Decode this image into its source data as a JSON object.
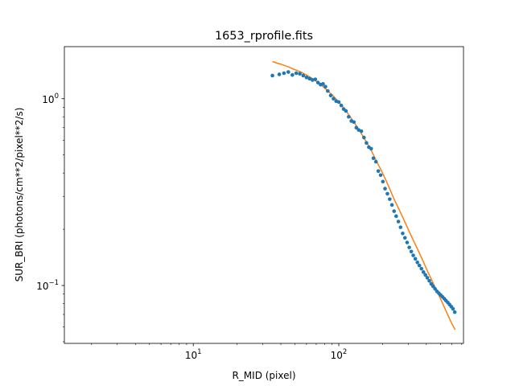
{
  "chart_data": {
    "type": "scatter",
    "title": "1653_rprofile.fits",
    "xlabel": "R_MID (pixel)",
    "ylabel": "SUR_BRI (photons/cm**2/pixel**2/s)",
    "xscale": "log",
    "yscale": "log",
    "xlim": [
      1.3,
      720
    ],
    "ylim": [
      0.049,
      1.9
    ],
    "x_major_ticks": [
      {
        "value": 10,
        "label": "10¹",
        "base": "10",
        "exp": "1"
      },
      {
        "value": 100,
        "label": "10²",
        "base": "10",
        "exp": "2"
      }
    ],
    "y_major_ticks": [
      {
        "value": 0.1,
        "label": "10⁻¹",
        "base": "10",
        "exp": "−1"
      },
      {
        "value": 1,
        "label": "10⁰",
        "base": "10",
        "exp": "0"
      }
    ],
    "grid": false,
    "legend": "none",
    "series": [
      {
        "kind": "points",
        "color": "#1f77b4",
        "x": [
          35,
          39,
          42,
          45,
          48,
          51,
          54,
          57,
          60,
          63,
          66,
          69,
          72,
          75,
          78,
          81,
          84,
          88,
          92,
          96,
          100,
          104,
          108,
          112,
          117,
          122,
          127,
          132,
          137,
          143,
          149,
          155,
          161,
          167,
          173,
          180,
          187,
          194,
          201,
          208,
          216,
          224,
          232,
          240,
          248,
          257,
          266,
          275,
          285,
          295,
          305,
          315,
          325,
          336,
          347,
          358,
          370,
          382,
          394,
          406,
          419,
          432,
          445,
          459,
          473,
          487,
          501,
          516,
          531,
          546,
          562,
          578,
          594,
          610,
          627
        ],
        "y": [
          1.33,
          1.35,
          1.37,
          1.39,
          1.34,
          1.37,
          1.36,
          1.33,
          1.3,
          1.28,
          1.26,
          1.27,
          1.22,
          1.19,
          1.2,
          1.16,
          1.1,
          1.04,
          1.0,
          0.97,
          0.96,
          0.92,
          0.88,
          0.86,
          0.8,
          0.76,
          0.75,
          0.7,
          0.68,
          0.67,
          0.62,
          0.58,
          0.55,
          0.54,
          0.48,
          0.46,
          0.41,
          0.39,
          0.36,
          0.33,
          0.31,
          0.29,
          0.27,
          0.25,
          0.235,
          0.22,
          0.205,
          0.19,
          0.18,
          0.17,
          0.16,
          0.152,
          0.145,
          0.139,
          0.133,
          0.128,
          0.123,
          0.118,
          0.114,
          0.11,
          0.106,
          0.102,
          0.099,
          0.096,
          0.093,
          0.091,
          0.089,
          0.087,
          0.085,
          0.083,
          0.081,
          0.079,
          0.077,
          0.075,
          0.072
        ]
      },
      {
        "kind": "line",
        "color": "#ff7f0e",
        "x": [
          35,
          40,
          45,
          50,
          55,
          60,
          65,
          70,
          75,
          80,
          90,
          100,
          110,
          120,
          130,
          140,
          150,
          165,
          180,
          200,
          220,
          240,
          260,
          280,
          300,
          325,
          350,
          380,
          410,
          440,
          470,
          500,
          530,
          560,
          590,
          630
        ],
        "y": [
          1.58,
          1.53,
          1.48,
          1.43,
          1.39,
          1.34,
          1.29,
          1.24,
          1.19,
          1.14,
          1.05,
          0.96,
          0.88,
          0.8,
          0.73,
          0.67,
          0.61,
          0.54,
          0.47,
          0.4,
          0.34,
          0.29,
          0.255,
          0.225,
          0.2,
          0.175,
          0.155,
          0.135,
          0.118,
          0.105,
          0.094,
          0.085,
          0.077,
          0.07,
          0.064,
          0.058
        ]
      }
    ]
  }
}
